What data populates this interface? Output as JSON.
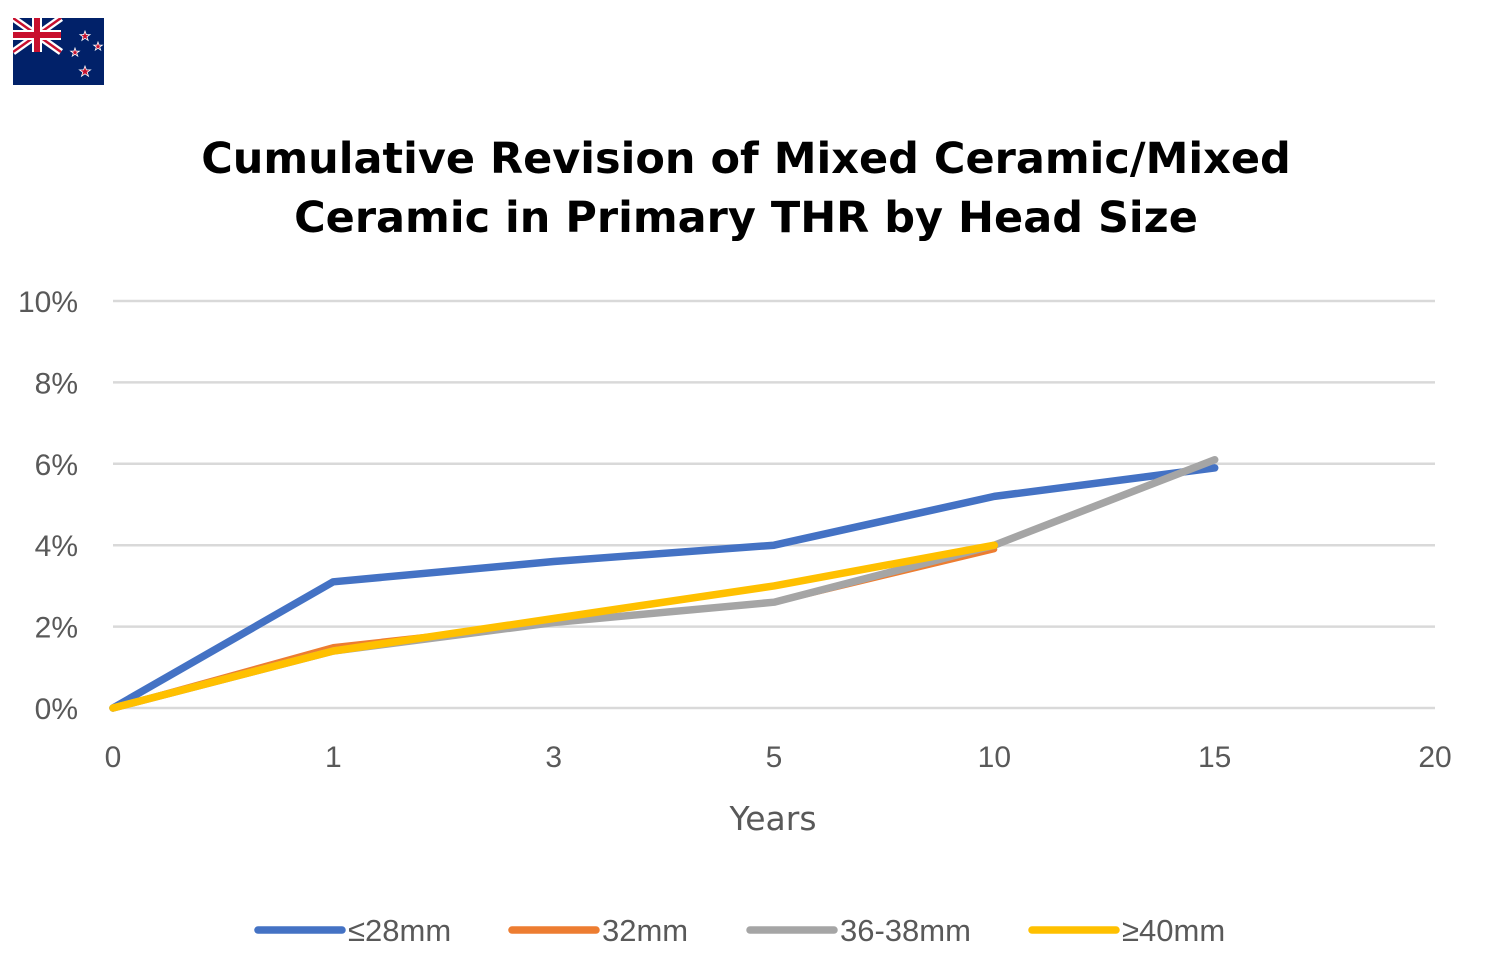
{
  "flag": {
    "name": "New Zealand flag"
  },
  "chart_data": {
    "type": "line",
    "title": "Cumulative Revision of Mixed Ceramic/Mixed Ceramic in Primary THR by Head Size",
    "title_lines": [
      "Cumulative Revision of Mixed Ceramic/Mixed",
      "Ceramic in Primary THR by Head Size"
    ],
    "xlabel": "Years",
    "ylabel": "",
    "categories": [
      "0",
      "1",
      "3",
      "5",
      "10",
      "15",
      "20"
    ],
    "y_ticks": [
      "0%",
      "2%",
      "4%",
      "6%",
      "8%",
      "10%"
    ],
    "ylim": [
      0,
      10
    ],
    "grid": true,
    "legend_position": "bottom",
    "series": [
      {
        "name": "≤28mm",
        "color": "#4472C4",
        "values": [
          0,
          3.1,
          3.6,
          4.0,
          5.2,
          5.9,
          null
        ]
      },
      {
        "name": "32mm",
        "color": "#ED7D31",
        "values": [
          0,
          1.5,
          2.1,
          2.6,
          3.9,
          null,
          null
        ]
      },
      {
        "name": "36-38mm",
        "color": "#A5A5A5",
        "values": [
          0,
          1.4,
          2.1,
          2.6,
          4.0,
          6.1,
          null
        ]
      },
      {
        "name": "≥40mm",
        "color": "#FFC000",
        "values": [
          0,
          1.4,
          2.2,
          3.0,
          4.0,
          null,
          null
        ]
      }
    ]
  }
}
